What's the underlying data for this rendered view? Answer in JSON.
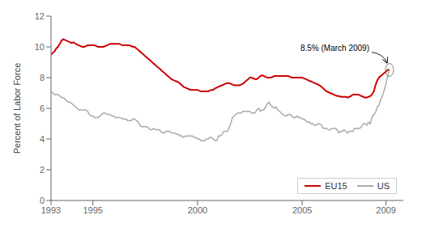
{
  "chart_data": {
    "type": "line",
    "y_label": "Percent of Labor Force",
    "xlim": [
      1993.0,
      2009.83
    ],
    "ylim": [
      0,
      12
    ],
    "xticks": [
      1993,
      1995,
      2000,
      2005,
      2009
    ],
    "yticks": [
      0,
      2,
      4,
      6,
      8,
      10,
      12
    ],
    "grid": false,
    "legend": "lower right",
    "annotations": [
      {
        "text": "8.5% (March 2009)",
        "x": 2009.17,
        "y": 8.5
      }
    ],
    "x": [
      1993.0,
      1993.08,
      1993.17,
      1993.25,
      1993.33,
      1993.42,
      1993.5,
      1993.58,
      1993.67,
      1993.75,
      1993.83,
      1993.92,
      1994.0,
      1994.08,
      1994.17,
      1994.25,
      1994.33,
      1994.42,
      1994.5,
      1994.58,
      1994.67,
      1994.75,
      1994.83,
      1994.92,
      1995.0,
      1995.08,
      1995.17,
      1995.25,
      1995.33,
      1995.42,
      1995.5,
      1995.58,
      1995.67,
      1995.75,
      1995.83,
      1995.92,
      1996.0,
      1996.08,
      1996.17,
      1996.25,
      1996.33,
      1996.42,
      1996.5,
      1996.58,
      1996.67,
      1996.75,
      1996.83,
      1996.92,
      1997.0,
      1997.08,
      1997.17,
      1997.25,
      1997.33,
      1997.42,
      1997.5,
      1997.58,
      1997.67,
      1997.75,
      1997.83,
      1997.92,
      1998.0,
      1998.08,
      1998.17,
      1998.25,
      1998.33,
      1998.42,
      1998.5,
      1998.58,
      1998.67,
      1998.75,
      1998.83,
      1998.92,
      1999.0,
      1999.08,
      1999.17,
      1999.25,
      1999.33,
      1999.42,
      1999.5,
      1999.58,
      1999.67,
      1999.75,
      1999.83,
      1999.92,
      2000.0,
      2000.08,
      2000.17,
      2000.25,
      2000.33,
      2000.42,
      2000.5,
      2000.58,
      2000.67,
      2000.75,
      2000.83,
      2000.92,
      2001.0,
      2001.08,
      2001.17,
      2001.25,
      2001.33,
      2001.42,
      2001.5,
      2001.58,
      2001.67,
      2001.75,
      2001.83,
      2001.92,
      2002.0,
      2002.08,
      2002.17,
      2002.25,
      2002.33,
      2002.42,
      2002.5,
      2002.58,
      2002.67,
      2002.75,
      2002.83,
      2002.92,
      2003.0,
      2003.08,
      2003.17,
      2003.25,
      2003.33,
      2003.42,
      2003.5,
      2003.58,
      2003.67,
      2003.75,
      2003.83,
      2003.92,
      2004.0,
      2004.08,
      2004.17,
      2004.25,
      2004.33,
      2004.42,
      2004.5,
      2004.58,
      2004.67,
      2004.75,
      2004.83,
      2004.92,
      2005.0,
      2005.08,
      2005.17,
      2005.25,
      2005.33,
      2005.42,
      2005.5,
      2005.58,
      2005.67,
      2005.75,
      2005.83,
      2005.92,
      2006.0,
      2006.08,
      2006.17,
      2006.25,
      2006.33,
      2006.42,
      2006.5,
      2006.58,
      2006.67,
      2006.75,
      2006.83,
      2006.92,
      2007.0,
      2007.08,
      2007.17,
      2007.25,
      2007.33,
      2007.42,
      2007.5,
      2007.58,
      2007.67,
      2007.75,
      2007.83,
      2007.92,
      2008.0,
      2008.08,
      2008.17,
      2008.25,
      2008.33,
      2008.42,
      2008.5,
      2008.58,
      2008.67,
      2008.75,
      2008.83,
      2008.92,
      2009.0,
      2009.08,
      2009.17
    ],
    "series": [
      {
        "name": "EU15",
        "color": "#cc0000",
        "values": [
          9.5,
          9.6,
          9.7,
          9.9,
          10.0,
          10.2,
          10.4,
          10.5,
          10.45,
          10.4,
          10.35,
          10.3,
          10.25,
          10.3,
          10.2,
          10.15,
          10.1,
          10.05,
          10.0,
          10.0,
          10.05,
          10.1,
          10.1,
          10.1,
          10.1,
          10.1,
          10.05,
          10.0,
          10.0,
          10.0,
          10.0,
          10.05,
          10.1,
          10.15,
          10.2,
          10.2,
          10.2,
          10.2,
          10.2,
          10.2,
          10.15,
          10.1,
          10.1,
          10.1,
          10.1,
          10.1,
          10.05,
          10.0,
          10.0,
          9.9,
          9.8,
          9.7,
          9.6,
          9.5,
          9.4,
          9.3,
          9.2,
          9.1,
          9.0,
          8.9,
          8.8,
          8.7,
          8.6,
          8.5,
          8.4,
          8.3,
          8.2,
          8.1,
          8.0,
          7.9,
          7.85,
          7.8,
          7.75,
          7.7,
          7.6,
          7.5,
          7.4,
          7.35,
          7.3,
          7.25,
          7.2,
          7.2,
          7.2,
          7.2,
          7.2,
          7.15,
          7.1,
          7.1,
          7.1,
          7.1,
          7.1,
          7.15,
          7.2,
          7.2,
          7.3,
          7.35,
          7.4,
          7.45,
          7.5,
          7.55,
          7.6,
          7.65,
          7.65,
          7.6,
          7.55,
          7.5,
          7.5,
          7.5,
          7.5,
          7.55,
          7.6,
          7.7,
          7.8,
          7.9,
          8.0,
          8.0,
          7.95,
          7.9,
          7.9,
          8.0,
          8.1,
          8.15,
          8.1,
          8.05,
          8.0,
          8.0,
          8.0,
          8.05,
          8.1,
          8.1,
          8.1,
          8.1,
          8.1,
          8.1,
          8.1,
          8.1,
          8.1,
          8.05,
          8.0,
          8.0,
          8.0,
          8.0,
          8.0,
          8.0,
          8.0,
          7.95,
          7.9,
          7.85,
          7.8,
          7.75,
          7.7,
          7.65,
          7.6,
          7.55,
          7.5,
          7.4,
          7.3,
          7.2,
          7.1,
          7.05,
          7.0,
          6.95,
          6.9,
          6.85,
          6.8,
          6.8,
          6.75,
          6.75,
          6.75,
          6.75,
          6.7,
          6.75,
          6.8,
          6.9,
          6.9,
          6.9,
          6.9,
          6.85,
          6.8,
          6.75,
          6.7,
          6.7,
          6.75,
          6.8,
          6.9,
          7.1,
          7.5,
          7.8,
          8.0,
          8.1,
          8.2,
          8.3,
          8.4,
          8.5,
          8.5
        ]
      },
      {
        "name": "US",
        "color": "#aaaaaa",
        "values": [
          7.1,
          7.0,
          6.9,
          6.9,
          6.9,
          6.8,
          6.7,
          6.7,
          6.6,
          6.5,
          6.4,
          6.4,
          6.3,
          6.2,
          6.1,
          6.0,
          5.9,
          5.9,
          5.9,
          5.9,
          5.9,
          5.8,
          5.6,
          5.5,
          5.5,
          5.4,
          5.4,
          5.4,
          5.5,
          5.6,
          5.7,
          5.7,
          5.6,
          5.6,
          5.6,
          5.5,
          5.5,
          5.4,
          5.4,
          5.4,
          5.4,
          5.3,
          5.3,
          5.3,
          5.2,
          5.2,
          5.2,
          5.3,
          5.3,
          5.2,
          5.1,
          4.9,
          4.8,
          4.8,
          4.8,
          4.8,
          4.7,
          4.6,
          4.6,
          4.7,
          4.6,
          4.6,
          4.6,
          4.5,
          4.4,
          4.4,
          4.5,
          4.5,
          4.5,
          4.4,
          4.4,
          4.4,
          4.3,
          4.3,
          4.2,
          4.2,
          4.1,
          4.2,
          4.2,
          4.2,
          4.2,
          4.2,
          4.1,
          4.1,
          4.0,
          4.0,
          3.9,
          3.9,
          3.9,
          4.0,
          4.0,
          4.1,
          4.1,
          4.0,
          3.9,
          3.9,
          4.2,
          4.2,
          4.3,
          4.5,
          4.5,
          4.5,
          4.7,
          5.0,
          5.4,
          5.5,
          5.6,
          5.7,
          5.7,
          5.7,
          5.8,
          5.8,
          5.8,
          5.8,
          5.8,
          5.7,
          5.7,
          5.7,
          5.9,
          6.0,
          5.8,
          5.9,
          5.9,
          6.1,
          6.3,
          6.4,
          6.2,
          6.1,
          6.0,
          6.1,
          5.9,
          5.8,
          5.7,
          5.6,
          5.5,
          5.5,
          5.6,
          5.6,
          5.5,
          5.4,
          5.4,
          5.5,
          5.4,
          5.4,
          5.3,
          5.3,
          5.2,
          5.1,
          5.1,
          5.0,
          5.0,
          4.9,
          4.9,
          5.0,
          5.0,
          4.9,
          4.7,
          4.7,
          4.7,
          4.6,
          4.6,
          4.7,
          4.7,
          4.7,
          4.6,
          4.4,
          4.5,
          4.5,
          4.6,
          4.5,
          4.4,
          4.5,
          4.5,
          4.5,
          4.7,
          4.7,
          4.7,
          4.7,
          4.8,
          5.0,
          5.0,
          4.9,
          5.1,
          5.0,
          5.4,
          5.6,
          5.7,
          6.1,
          6.2,
          6.6,
          6.8,
          7.2,
          7.6,
          8.1,
          8.5
        ]
      }
    ]
  }
}
